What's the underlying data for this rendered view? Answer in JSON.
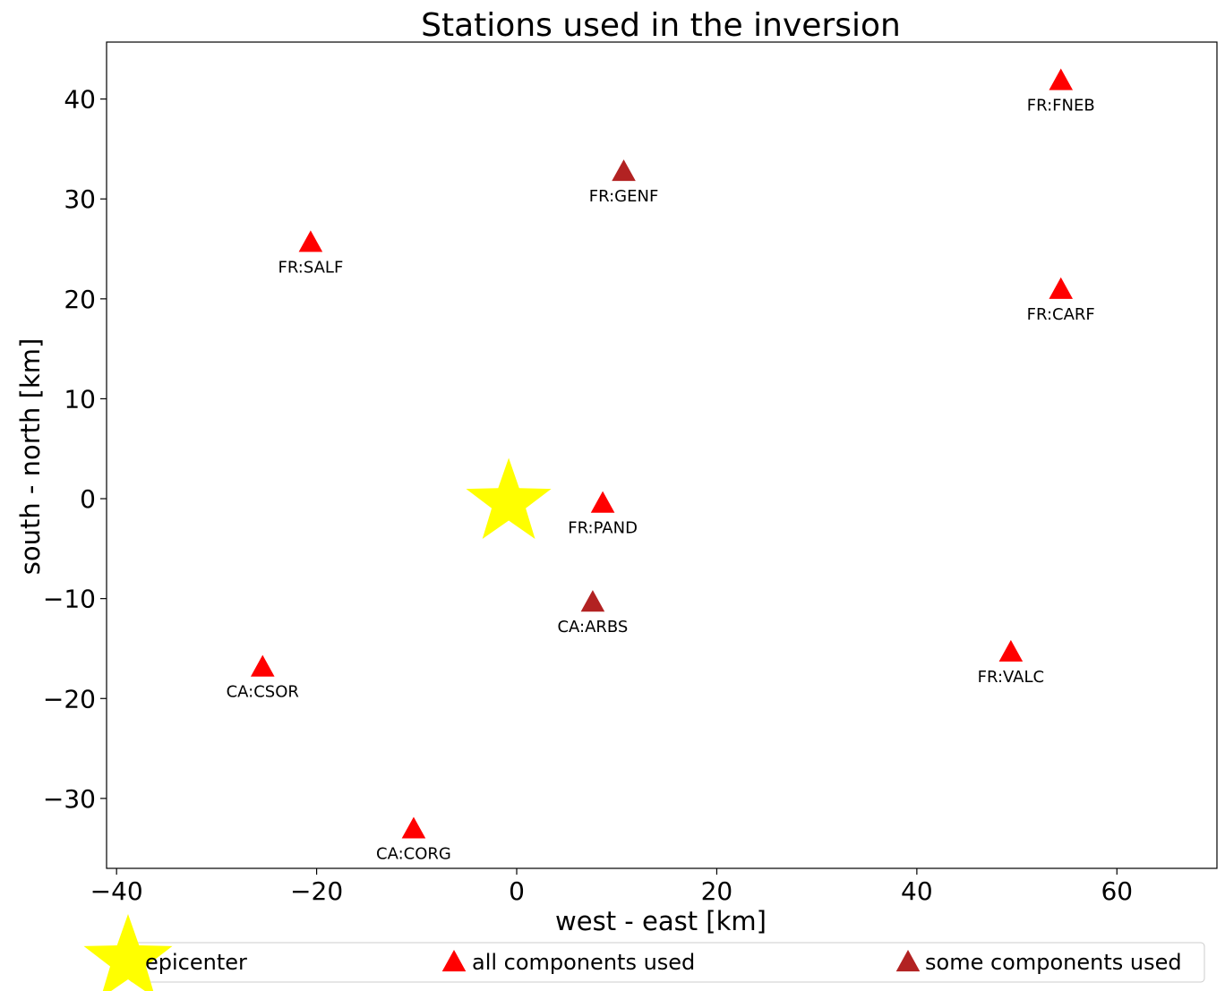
{
  "chart_data": {
    "type": "scatter",
    "title": "Stations used in the inversion",
    "xlabel": "west - east [km]",
    "ylabel": "south - north [km]",
    "xlim": [
      -41,
      70
    ],
    "ylim": [
      -37,
      45.7
    ],
    "xticks": [
      -40,
      -20,
      0,
      20,
      40,
      60
    ],
    "yticks": [
      -30,
      -20,
      -10,
      0,
      10,
      20,
      30,
      40
    ],
    "xtick_labels": [
      "−40",
      "−20",
      "0",
      "20",
      "40",
      "60"
    ],
    "ytick_labels": [
      "−30",
      "−20",
      "−10",
      "0",
      "10",
      "20",
      "30",
      "40"
    ],
    "grid": false,
    "legend_position": "bottom",
    "epicenter": {
      "x": -0.8,
      "y": -0.4,
      "color": "#ffff00"
    },
    "stations": [
      {
        "name": "FR:FNEB",
        "x": 54.4,
        "y": 41.8,
        "status": "all"
      },
      {
        "name": "FR:GENF",
        "x": 10.7,
        "y": 32.7,
        "status": "some"
      },
      {
        "name": "FR:SALF",
        "x": -20.6,
        "y": 25.6,
        "status": "all"
      },
      {
        "name": "FR:CARF",
        "x": 54.4,
        "y": 20.9,
        "status": "all"
      },
      {
        "name": "FR:PAND",
        "x": 8.6,
        "y": -0.5,
        "status": "all"
      },
      {
        "name": "CA:ARBS",
        "x": 7.6,
        "y": -10.4,
        "status": "some"
      },
      {
        "name": "FR:VALC",
        "x": 49.4,
        "y": -15.4,
        "status": "all"
      },
      {
        "name": "CA:CSOR",
        "x": -25.4,
        "y": -16.9,
        "status": "all"
      },
      {
        "name": "CA:CORG",
        "x": -10.3,
        "y": -33.1,
        "status": "all"
      }
    ],
    "colors": {
      "all": "#ff0000",
      "some": "#b22222"
    },
    "legend": [
      {
        "key": "epicenter",
        "label": "epicenter"
      },
      {
        "key": "all",
        "label": "all components used"
      },
      {
        "key": "some",
        "label": "some components used"
      }
    ]
  }
}
